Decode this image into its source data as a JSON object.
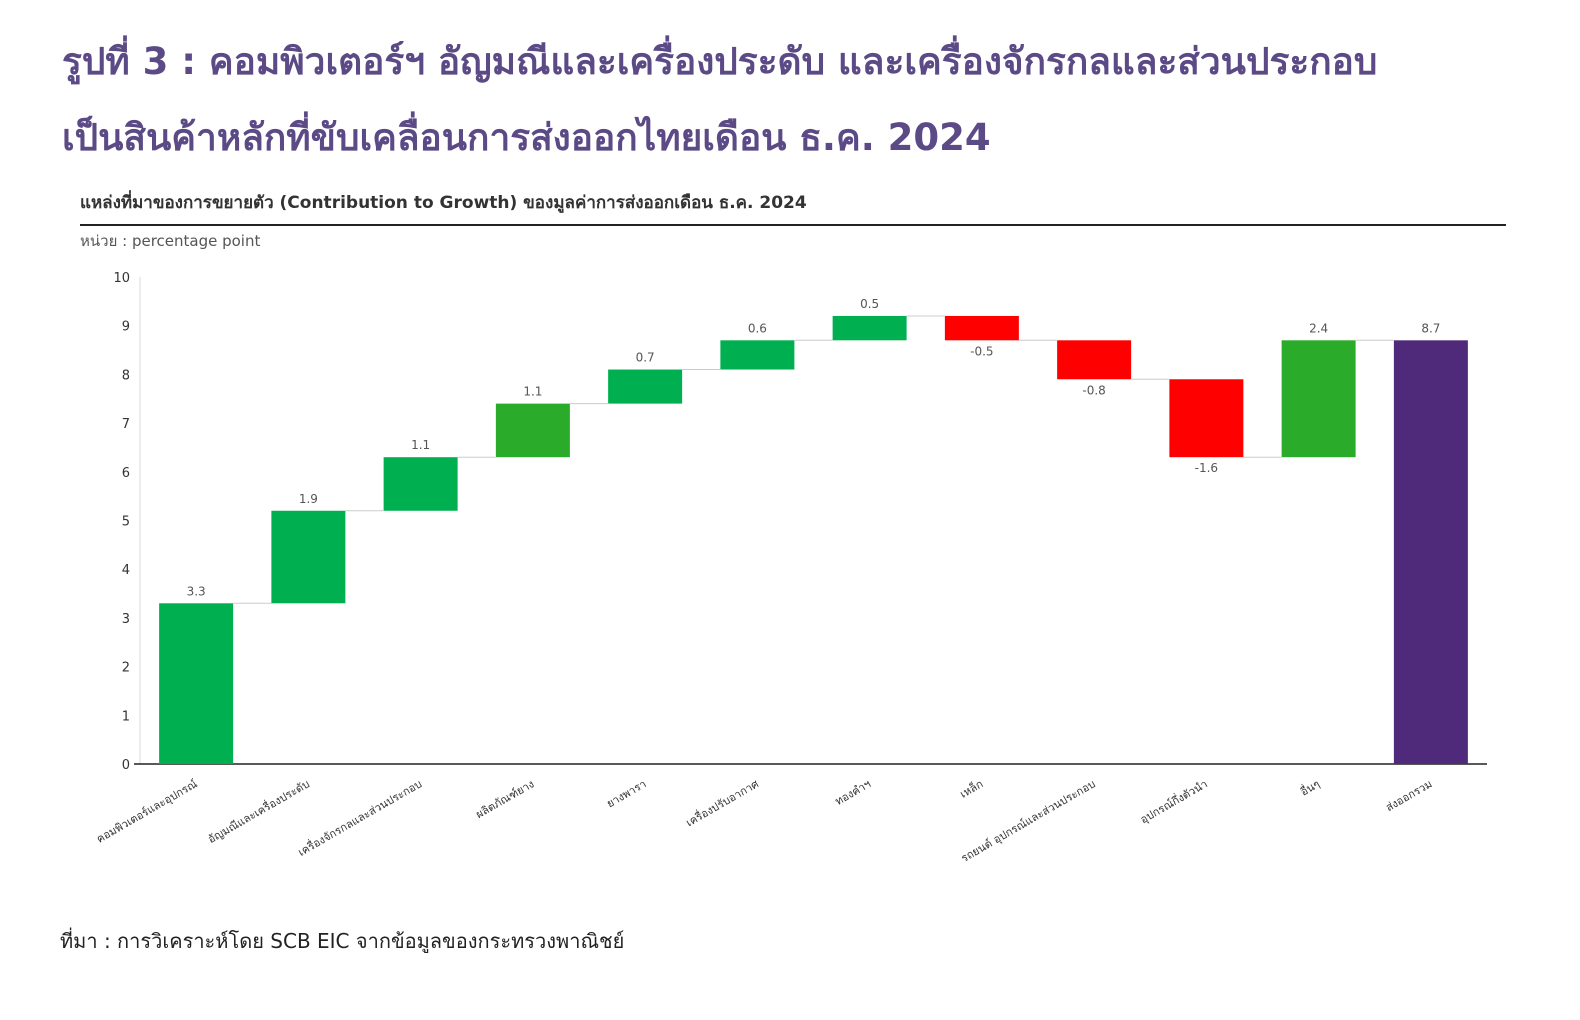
{
  "title_line1": "รูปที่ 3 : คอมพิวเตอร์ฯ อัญมณีและเครื่องประดับ และเครื่องจักรกลและส่วนประกอบ",
  "title_line2": "เป็นสินค้าหลักที่ขับเคลื่อนการส่งออกไทยเดือน ธ.ค. 2024",
  "source": "ที่มา : การวิเคราะห์โดย SCB EIC จากข้อมูลของกระทรวงพาณิชย์",
  "colors": {
    "increase": "#00b050",
    "increase_alt": "#2aab2a",
    "decrease": "#ff0000",
    "total": "#4f2a7a",
    "title": "#5b4a86"
  },
  "chart_data": {
    "type": "waterfall",
    "title": "แหล่งที่มาของการขยายตัว (Contribution to Growth) ของมูลค่าการส่งออกเดือน ธ.ค. 2024",
    "unit_label": "หน่วย : percentage point",
    "ylim": [
      0,
      10
    ],
    "yticks": [
      0,
      1,
      2,
      3,
      4,
      5,
      6,
      7,
      8,
      9,
      10
    ],
    "grid": false,
    "categories": [
      "คอมพิวเตอร์และอุปกรณ์",
      "อัญมณีและเครื่องประดับ",
      "เครื่องจักรกลและส่วนประกอบ",
      "ผลิตภัณฑ์ยาง",
      "ยางพารา",
      "เครื่องปรับอากาศ",
      "ทองคำฯ",
      "เหล็ก",
      "รถยนต์ อุปกรณ์และส่วนประกอบ",
      "อุปกรณ์กึ่งตัวนำ",
      "อื่นๆ",
      "ส่งออกรวม"
    ],
    "values": [
      3.3,
      1.9,
      1.1,
      1.1,
      0.7,
      0.6,
      0.5,
      -0.5,
      -0.8,
      -1.6,
      2.4,
      8.7
    ],
    "value_labels": [
      "3.3",
      "1.9",
      "1.1",
      "1.1",
      "0.7",
      "0.6",
      "0.5",
      "-0.5",
      "-0.8",
      "-1.6",
      "2.4",
      "8.7"
    ],
    "bar_kinds": [
      "increase",
      "increase",
      "increase",
      "increase_alt",
      "increase",
      "increase",
      "increase",
      "decrease",
      "decrease",
      "decrease",
      "increase_alt",
      "total"
    ]
  }
}
